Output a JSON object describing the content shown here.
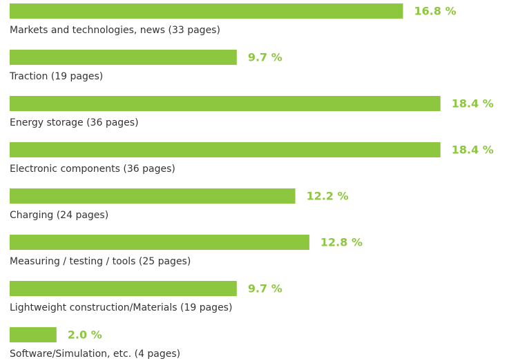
{
  "chart_data": {
    "type": "bar",
    "orientation": "horizontal",
    "categories": [
      "Markets and technologies, news (33 pages)",
      "Traction (19 pages)",
      "Energy storage (36 pages)",
      "Electronic components (36 pages)",
      "Charging (24 pages)",
      "Measuring / testing / tools (25 pages)",
      "Lightweight construction/Materials (19 pages)",
      "Software/Simulation, etc. (4 pages)"
    ],
    "values": [
      16.8,
      9.7,
      18.4,
      18.4,
      12.2,
      12.8,
      9.7,
      2.0
    ],
    "value_labels": [
      "16.8 %",
      "9.7 %",
      "18.4 %",
      "18.4 %",
      "12.2 %",
      "12.8 %",
      "9.7 %",
      "2.0 %"
    ],
    "color": "#8dc63f"
  }
}
